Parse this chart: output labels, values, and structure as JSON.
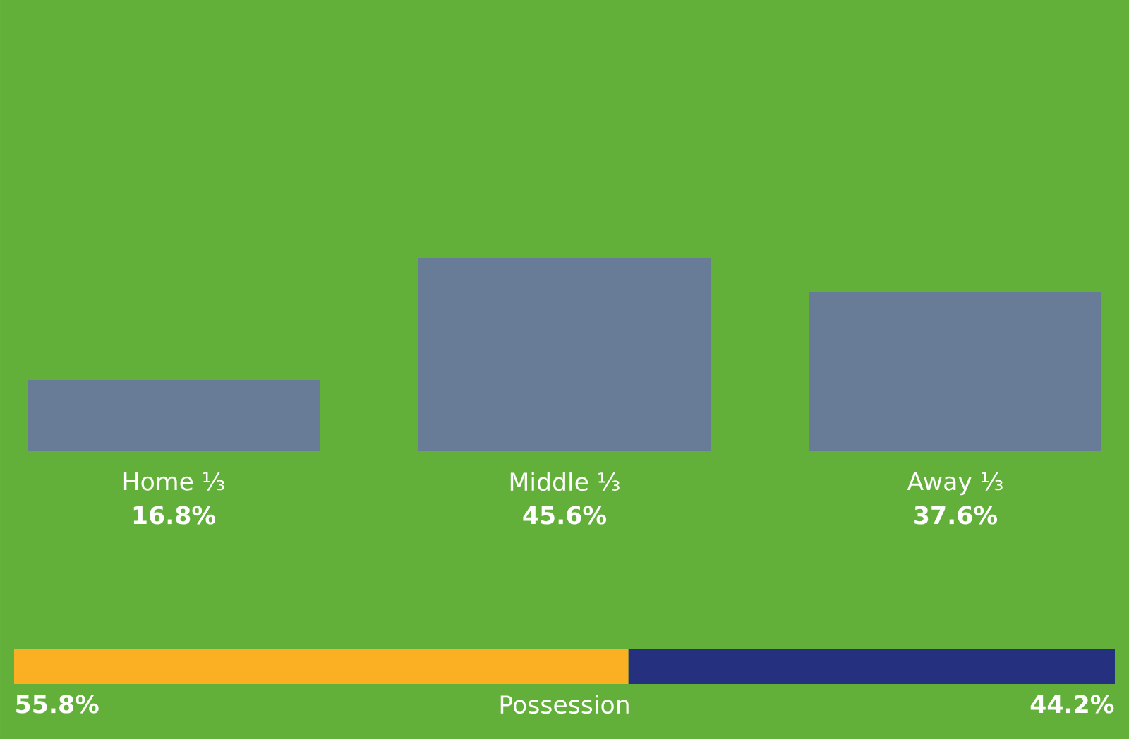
{
  "chart_data": [
    {
      "type": "bar",
      "categories": [
        "Home ⅓",
        "Middle ⅓",
        "Away ⅓"
      ],
      "values": [
        16.8,
        45.6,
        37.6
      ],
      "value_labels": [
        "16.8%",
        "45.6%",
        "37.6%"
      ],
      "color": "#6a72a8",
      "tick_labels": "x"
    },
    {
      "type": "bar",
      "orientation": "horizontal",
      "stacked": true,
      "categories": [
        null
      ],
      "xlabel": "Possession",
      "tick_labels": false,
      "series": [
        {
          "color": "#fbb024",
          "values": [
            55.8
          ],
          "value_labels": [
            "55.8%"
          ]
        },
        {
          "color": "#25317f",
          "values": [
            44.2
          ],
          "value_labels": [
            "44.2%"
          ]
        }
      ]
    }
  ]
}
